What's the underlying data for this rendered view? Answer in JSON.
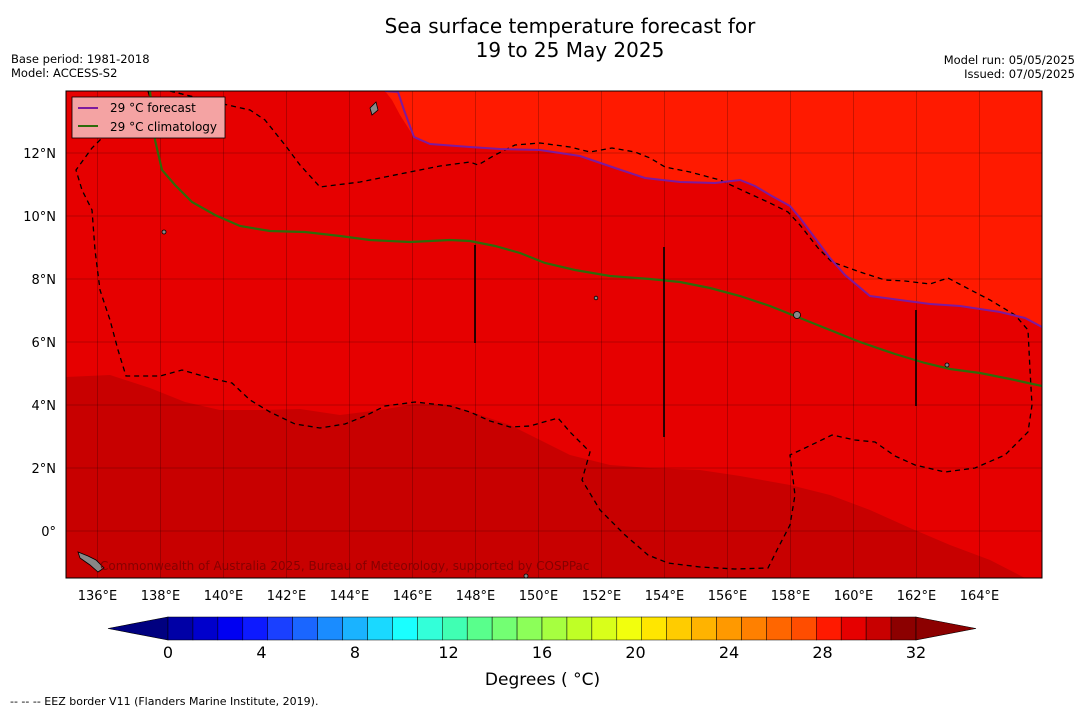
{
  "header": {
    "title_line1": "Sea surface temperature forecast for",
    "title_line2": "19 to 25 May 2025",
    "base_period": "Base period: 1981-2018",
    "model": "Model: ACCESS-S2",
    "model_run": "Model run: 05/05/2025",
    "issued": "Issued: 07/05/2025"
  },
  "map": {
    "x_ticks": [
      "136°E",
      "138°E",
      "140°E",
      "142°E",
      "144°E",
      "146°E",
      "148°E",
      "150°E",
      "152°E",
      "154°E",
      "156°E",
      "158°E",
      "160°E",
      "162°E",
      "164°E"
    ],
    "y_ticks": [
      "12°N",
      "10°N",
      "8°N",
      "6°N",
      "4°N",
      "2°N",
      "0°"
    ],
    "legend": {
      "forecast": "29 °C  forecast",
      "climatology": "29 °C  climatology"
    },
    "copyright": "Commonwealth of Australia 2025, Bureau of Meteorology, supported by COSPPac",
    "colors": {
      "warm_ge30": "#ff1a00",
      "mid_29_30": "#e60000",
      "cool_28_29": "#c80000",
      "forecast_line": "#7d1a9e",
      "climatology_line": "#2e6b0a"
    }
  },
  "colorbar": {
    "ticks": [
      "0",
      "4",
      "8",
      "12",
      "16",
      "20",
      "24",
      "28",
      "32"
    ],
    "label": "Degrees ( °C)",
    "colors": [
      "#000080",
      "#0000a6",
      "#0000cc",
      "#0000f2",
      "#0d1aff",
      "#1a40ff",
      "#1a66ff",
      "#1a8cff",
      "#1ab3ff",
      "#1ad9ff",
      "#1affff",
      "#33ffd9",
      "#40ffb3",
      "#59ff8c",
      "#73ff73",
      "#8cff59",
      "#a6ff40",
      "#bfff26",
      "#d9ff1a",
      "#f2ff0d",
      "#ffe600",
      "#ffcc00",
      "#ffb300",
      "#ff9900",
      "#ff8000",
      "#ff6600",
      "#ff4d00",
      "#ff1a00",
      "#e60000",
      "#c80000",
      "#8c0000"
    ]
  },
  "footnote": "--  --  -- EEZ border V11 (Flanders Marine Institute, 2019)."
}
